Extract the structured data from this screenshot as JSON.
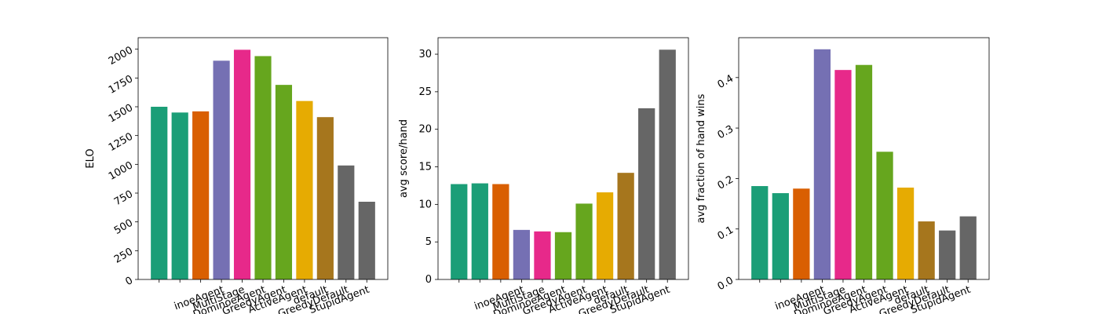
{
  "agent_labels": [
    "",
    "",
    "",
    "inoeAgent",
    "MultiStage",
    "DominoeAgent",
    "GreedyAgent",
    "ActiveAgent",
    "default",
    "GreedyDefault",
    "StupidAgent"
  ],
  "bar_colors": [
    "#1b9e77",
    "#1b9e77",
    "#d95f02",
    "#7570b3",
    "#e7298a",
    "#66a61e",
    "#66a61e",
    "#e6ab02",
    "#a6761d",
    "#666666",
    "#666666"
  ],
  "chart_data": [
    {
      "type": "bar",
      "ylabel": "ELO",
      "ylim": [
        0,
        2100
      ],
      "yticks": [
        0,
        250,
        500,
        750,
        1000,
        1250,
        1500,
        1750,
        2000
      ],
      "ytick_labels": [
        "0",
        "250",
        "500",
        "750",
        "1000",
        "1250",
        "1500",
        "1750",
        "2000"
      ],
      "ytick_rotation": -30,
      "values": [
        1500,
        1450,
        1460,
        1900,
        1995,
        1940,
        1690,
        1550,
        1410,
        990,
        675
      ]
    },
    {
      "type": "bar",
      "ylabel": "avg score/hand",
      "ylim": [
        0,
        32.2
      ],
      "yticks": [
        0,
        5,
        10,
        15,
        20,
        25,
        30
      ],
      "ytick_labels": [
        "0",
        "5",
        "10",
        "15",
        "20",
        "25",
        "30"
      ],
      "ytick_rotation": 0,
      "values": [
        12.7,
        12.8,
        12.7,
        6.6,
        6.4,
        6.3,
        10.1,
        11.6,
        14.2,
        22.8,
        30.6
      ]
    },
    {
      "type": "bar",
      "ylabel": "avg fraction of hand wins",
      "ylim": [
        0,
        0.479
      ],
      "yticks": [
        0.0,
        0.1,
        0.2,
        0.3,
        0.4
      ],
      "ytick_labels": [
        "0.0",
        "0.1",
        "0.2",
        "0.3",
        "0.4"
      ],
      "ytick_rotation": -30,
      "values": [
        0.185,
        0.171,
        0.18,
        0.456,
        0.415,
        0.425,
        0.253,
        0.182,
        0.115,
        0.097,
        0.125
      ]
    }
  ]
}
